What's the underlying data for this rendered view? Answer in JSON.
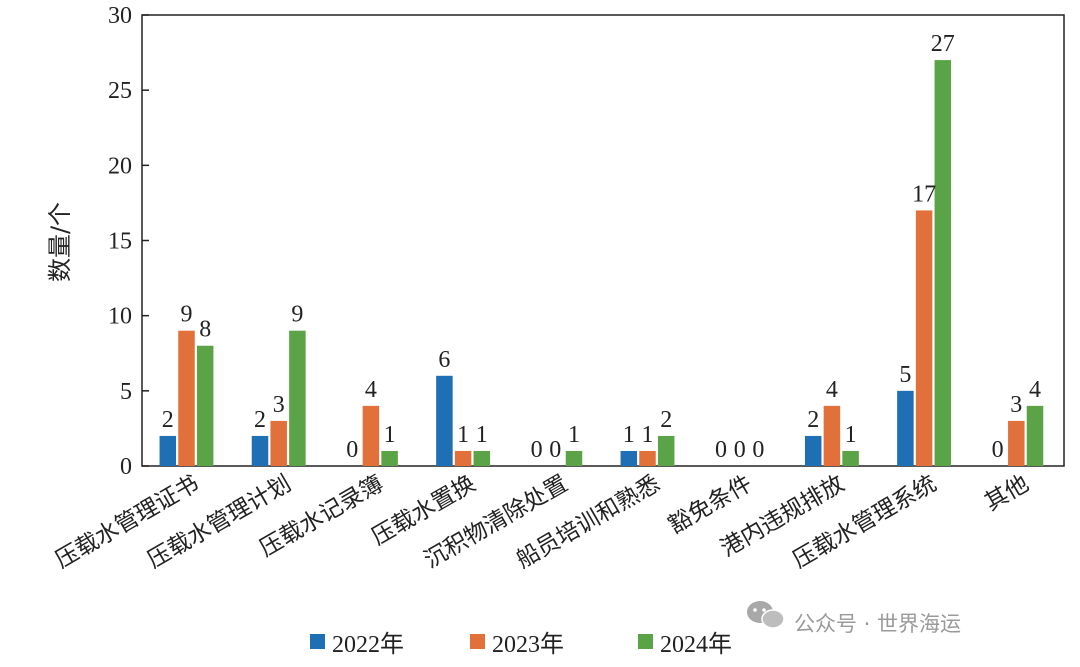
{
  "chart_data": {
    "type": "bar",
    "ylabel": "数量/个",
    "xlabel": "",
    "ylim": [
      0,
      30
    ],
    "yticks": [
      0,
      5,
      10,
      15,
      20,
      25,
      30
    ],
    "grid": false,
    "legend_position": "bottom",
    "categories": [
      "压载水管理证书",
      "压载水管理计划",
      "压载水记录簿",
      "压载水置换",
      "沉积物清除处置",
      "船员培训和熟悉",
      "豁免条件",
      "港内违规排放",
      "压载水管理系统",
      "其他"
    ],
    "series": [
      {
        "name": "2022年",
        "color": "#1f6fb4",
        "values": [
          2,
          2,
          0,
          6,
          0,
          1,
          0,
          2,
          5,
          0
        ]
      },
      {
        "name": "2023年",
        "color": "#e2703a",
        "values": [
          9,
          3,
          4,
          1,
          0,
          1,
          0,
          4,
          17,
          3
        ]
      },
      {
        "name": "2024年",
        "color": "#5aa347",
        "values": [
          8,
          9,
          1,
          1,
          1,
          2,
          0,
          1,
          27,
          4
        ]
      }
    ]
  },
  "watermark": {
    "icon": "wechat-icon",
    "text": "公众号 · 世界海运"
  }
}
